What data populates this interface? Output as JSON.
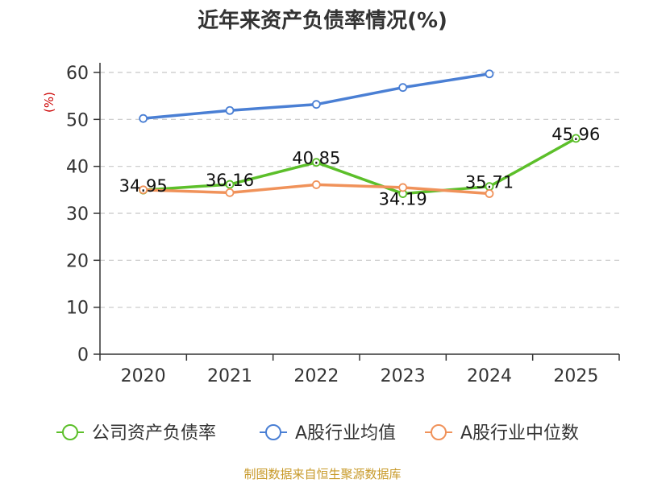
{
  "chart_data": {
    "type": "line",
    "title": "近年来资产负债率情况(%)",
    "ylabel": "(%)",
    "xlabel": "",
    "categories": [
      "2020",
      "2021",
      "2022",
      "2023",
      "2024",
      "2025"
    ],
    "ylim": [
      0,
      60
    ],
    "yticks": [
      0,
      10,
      20,
      30,
      40,
      50,
      60
    ],
    "grid": true,
    "legend_position": "bottom",
    "series": [
      {
        "name": "公司资产负债率",
        "color": "#5cbf2a",
        "values": [
          34.95,
          36.16,
          40.85,
          34.19,
          35.71,
          45.96
        ],
        "labels": [
          "34.95",
          "36.16",
          "40.85",
          "34.19",
          "35.71",
          "45.96"
        ]
      },
      {
        "name": "A股行业均值",
        "color": "#4a7fd4",
        "values": [
          50.2,
          51.9,
          53.2,
          56.8,
          59.7,
          null
        ]
      },
      {
        "name": "A股行业中位数",
        "color": "#f0925a",
        "values": [
          35.0,
          34.4,
          36.1,
          35.5,
          34.2,
          null
        ]
      }
    ],
    "source": "制图数据来自恒生聚源数据库"
  }
}
